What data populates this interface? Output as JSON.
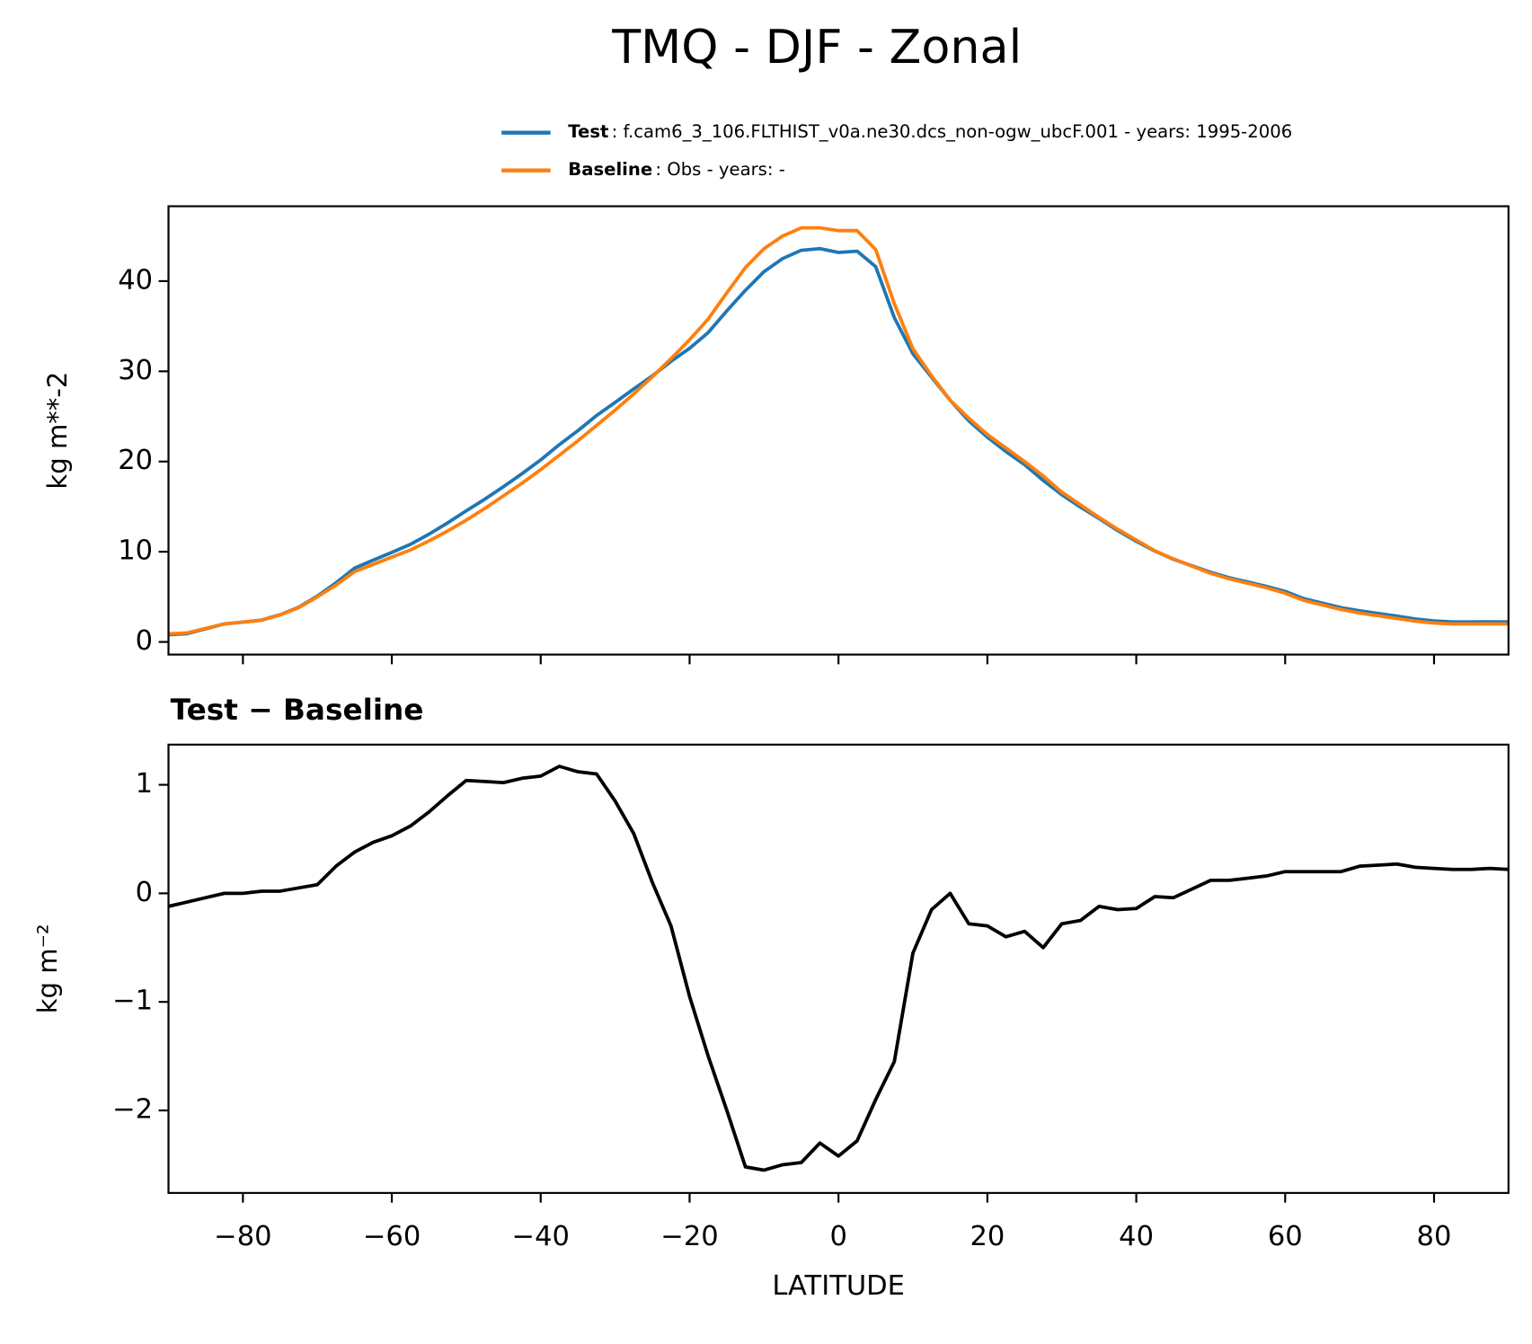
{
  "title": "TMQ - DJF - Zonal",
  "chart_data": [
    {
      "type": "line",
      "ylabel": "kg m**-2",
      "x": [
        -90,
        -87.5,
        -85,
        -82.5,
        -80,
        -77.5,
        -75,
        -72.5,
        -70,
        -67.5,
        -65,
        -62.5,
        -60,
        -57.5,
        -55,
        -52.5,
        -50,
        -47.5,
        -45,
        -42.5,
        -40,
        -37.5,
        -35,
        -32.5,
        -30,
        -27.5,
        -25,
        -22.5,
        -20,
        -17.5,
        -15,
        -12.5,
        -10,
        -7.5,
        -5,
        -2.5,
        0,
        2.5,
        5,
        7.5,
        10,
        12.5,
        15,
        17.5,
        20,
        22.5,
        25,
        27.5,
        30,
        32.5,
        35,
        37.5,
        40,
        42.5,
        45,
        47.5,
        50,
        52.5,
        55,
        57.5,
        60,
        62.5,
        65,
        67.5,
        70,
        72.5,
        75,
        77.5,
        80,
        82.5,
        85,
        87.5,
        90
      ],
      "series": [
        {
          "name": "Test",
          "label": ": f.cam6_3_106.FLTHIST_v0a.ne30.dcs_non-ogw_ubcF.001 - years: 1995-2006",
          "color": "#1f77b4",
          "values": [
            0.8,
            0.92,
            1.46,
            2.0,
            2.2,
            2.42,
            3.02,
            3.85,
            5.08,
            6.55,
            8.18,
            9.07,
            9.93,
            10.82,
            11.95,
            13.2,
            14.54,
            15.83,
            17.22,
            18.66,
            20.18,
            21.87,
            23.42,
            25.1,
            26.55,
            28.05,
            29.5,
            31.1,
            32.55,
            34.3,
            36.7,
            38.98,
            41.05,
            42.5,
            43.42,
            43.6,
            43.18,
            43.32,
            41.6,
            35.95,
            31.95,
            29.35,
            26.8,
            24.52,
            22.7,
            21.1,
            19.65,
            17.9,
            16.32,
            14.95,
            13.68,
            12.35,
            11.16,
            10.07,
            9.16,
            8.44,
            7.72,
            7.12,
            6.64,
            6.16,
            5.6,
            4.8,
            4.3,
            3.8,
            3.45,
            3.16,
            2.87,
            2.54,
            2.33,
            2.22,
            2.22,
            2.23,
            2.22
          ]
        },
        {
          "name": "Baseline",
          "label": ": Obs - years: -",
          "color": "#ff7f0e",
          "values": [
            0.9,
            1.0,
            1.5,
            2.0,
            2.2,
            2.4,
            3.0,
            3.8,
            5.0,
            6.3,
            7.8,
            8.6,
            9.4,
            10.2,
            11.2,
            12.3,
            13.5,
            14.8,
            16.2,
            17.6,
            19.1,
            20.7,
            22.3,
            24.0,
            25.7,
            27.5,
            29.4,
            31.4,
            33.5,
            35.8,
            38.7,
            41.5,
            43.6,
            45.0,
            45.9,
            45.9,
            45.6,
            45.6,
            43.5,
            37.5,
            32.5,
            29.5,
            26.8,
            24.8,
            23.0,
            21.5,
            20.0,
            18.4,
            16.6,
            15.2,
            13.8,
            12.5,
            11.3,
            10.1,
            9.2,
            8.4,
            7.6,
            7.0,
            6.5,
            6.0,
            5.4,
            4.6,
            4.1,
            3.6,
            3.2,
            2.9,
            2.6,
            2.3,
            2.1,
            2.0,
            2.0,
            2.0,
            2.0
          ]
        }
      ],
      "xlim": [
        -90,
        90
      ],
      "xticks": [
        -80,
        -60,
        -40,
        -20,
        0,
        20,
        40,
        60,
        80
      ],
      "show_xticklabels": false,
      "ylim": [
        -1.4,
        48.3
      ],
      "yticks": [
        0,
        10,
        20,
        30,
        40
      ],
      "legend": "upper right"
    },
    {
      "type": "line",
      "title": "Test − Baseline",
      "ylabel": "kg m⁻²",
      "xlabel": "LATITUDE",
      "x": [
        -90,
        -87.5,
        -85,
        -82.5,
        -80,
        -77.5,
        -75,
        -72.5,
        -70,
        -67.5,
        -65,
        -62.5,
        -60,
        -57.5,
        -55,
        -52.5,
        -50,
        -47.5,
        -45,
        -42.5,
        -40,
        -37.5,
        -35,
        -32.5,
        -30,
        -27.5,
        -25,
        -22.5,
        -20,
        -17.5,
        -15,
        -12.5,
        -10,
        -7.5,
        -5,
        -2.5,
        0,
        2.5,
        5,
        7.5,
        10,
        12.5,
        15,
        17.5,
        20,
        22.5,
        25,
        27.5,
        30,
        32.5,
        35,
        37.5,
        40,
        42.5,
        45,
        47.5,
        50,
        52.5,
        55,
        57.5,
        60,
        62.5,
        65,
        67.5,
        70,
        72.5,
        75,
        77.5,
        80,
        82.5,
        85,
        87.5,
        90
      ],
      "series": [
        {
          "color": "#000000",
          "values": [
            -0.12,
            -0.08,
            -0.04,
            0.0,
            0.0,
            0.02,
            0.02,
            0.05,
            0.08,
            0.25,
            0.38,
            0.47,
            0.53,
            0.62,
            0.75,
            0.9,
            1.04,
            1.03,
            1.02,
            1.06,
            1.08,
            1.17,
            1.12,
            1.1,
            0.85,
            0.55,
            0.1,
            -0.3,
            -0.95,
            -1.5,
            -2.0,
            -2.52,
            -2.55,
            -2.5,
            -2.48,
            -2.3,
            -2.42,
            -2.28,
            -1.9,
            -1.55,
            -0.55,
            -0.15,
            0.0,
            -0.28,
            -0.3,
            -0.4,
            -0.35,
            -0.5,
            -0.28,
            -0.25,
            -0.12,
            -0.15,
            -0.14,
            -0.03,
            -0.04,
            0.04,
            0.12,
            0.12,
            0.14,
            0.16,
            0.2,
            0.2,
            0.2,
            0.2,
            0.25,
            0.26,
            0.27,
            0.24,
            0.23,
            0.22,
            0.22,
            0.23,
            0.22
          ]
        }
      ],
      "xlim": [
        -90,
        90
      ],
      "xticks": [
        {
          "value": -80,
          "label": "−80"
        },
        {
          "value": -60,
          "label": "−60"
        },
        {
          "value": -40,
          "label": "−40"
        },
        {
          "value": -20,
          "label": "−20"
        },
        0,
        20,
        40,
        60,
        80
      ],
      "show_xticklabels": true,
      "ylim": [
        -2.76,
        1.37
      ],
      "yticks": [
        {
          "value": -2,
          "label": "−2"
        },
        {
          "value": -1,
          "label": "−1"
        },
        0,
        1
      ]
    }
  ]
}
